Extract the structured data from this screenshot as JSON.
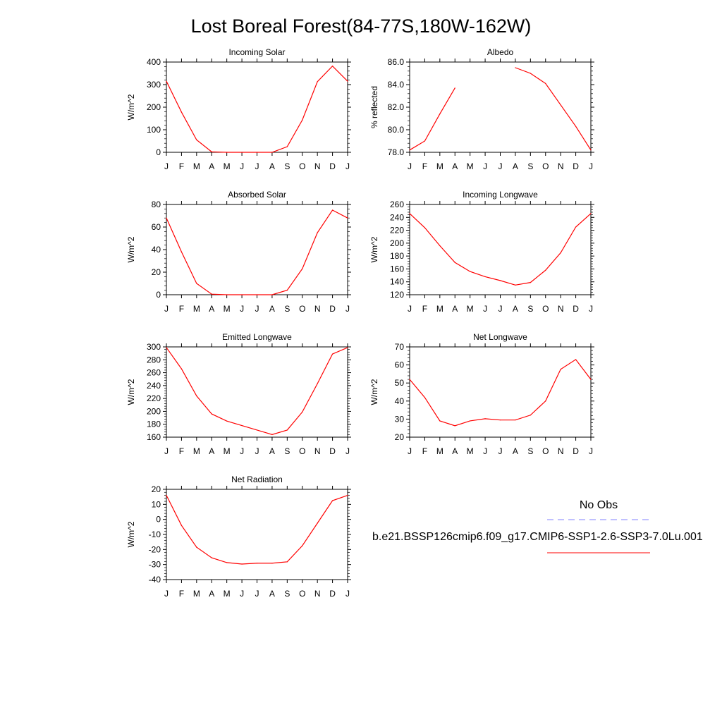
{
  "page": {
    "title": "Lost Boreal Forest(84-77S,180W-162W)"
  },
  "legend": {
    "obs_label": "No Obs",
    "model_label": "b.e21.BSSP126cmip6.f09_g17.CMIP6-SSP1-2.6-SSP3-7.0Lu.001",
    "obs_color": "#8080ff",
    "model_color": "#ff0000"
  },
  "colors": {
    "line": "#ff0000",
    "axis": "#000000"
  },
  "chart_data": [
    {
      "id": "incoming-solar",
      "type": "line",
      "title": "Incoming Solar",
      "ylabel": "W/m^2",
      "categories": [
        "J",
        "F",
        "M",
        "A",
        "M",
        "J",
        "J",
        "A",
        "S",
        "O",
        "N",
        "D",
        "J"
      ],
      "ylim": [
        0,
        400
      ],
      "yticks": [
        0,
        100,
        200,
        300,
        400
      ],
      "ytick_labels": [
        "0",
        "100",
        "200",
        "300",
        "400"
      ],
      "series": [
        {
          "values": [
            315,
            178,
            55,
            2,
            0,
            0,
            0,
            0,
            25,
            143,
            313,
            382,
            315
          ]
        }
      ]
    },
    {
      "id": "albedo",
      "type": "line",
      "title": "Albedo",
      "ylabel": "% reflected",
      "categories": [
        "J",
        "F",
        "M",
        "A",
        "M",
        "J",
        "J",
        "A",
        "S",
        "O",
        "N",
        "D",
        "J"
      ],
      "ylim": [
        78.0,
        86.0
      ],
      "yticks": [
        78.0,
        80.0,
        82.0,
        84.0,
        86.0
      ],
      "ytick_labels": [
        "78.0",
        "80.0",
        "82.0",
        "84.0",
        "86.0"
      ],
      "series": [
        {
          "values": [
            78.2,
            79.0,
            81.4,
            83.7,
            null,
            null,
            null,
            85.5,
            85.0,
            84.1,
            82.2,
            80.3,
            78.2
          ]
        }
      ]
    },
    {
      "id": "absorbed-solar",
      "type": "line",
      "title": "Absorbed Solar",
      "ylabel": "W/m^2",
      "categories": [
        "J",
        "F",
        "M",
        "A",
        "M",
        "J",
        "J",
        "A",
        "S",
        "O",
        "N",
        "D",
        "J"
      ],
      "ylim": [
        0,
        80
      ],
      "yticks": [
        0,
        20,
        40,
        60,
        80
      ],
      "ytick_labels": [
        "0",
        "20",
        "40",
        "60",
        "80"
      ],
      "series": [
        {
          "values": [
            68,
            38,
            10,
            0.5,
            0,
            0,
            0,
            0,
            4,
            23,
            55,
            75,
            68
          ]
        }
      ]
    },
    {
      "id": "incoming-longwave",
      "type": "line",
      "title": "Incoming Longwave",
      "ylabel": "W/m^2",
      "categories": [
        "J",
        "F",
        "M",
        "A",
        "M",
        "J",
        "J",
        "A",
        "S",
        "O",
        "N",
        "D",
        "J"
      ],
      "ylim": [
        120,
        260
      ],
      "yticks": [
        120,
        140,
        160,
        180,
        200,
        220,
        240,
        260
      ],
      "ytick_labels": [
        "120",
        "140",
        "160",
        "180",
        "200",
        "220",
        "240",
        "260"
      ],
      "series": [
        {
          "values": [
            246,
            224,
            196,
            170,
            156,
            148,
            142,
            135,
            139,
            158,
            185,
            225,
            246
          ]
        }
      ]
    },
    {
      "id": "emitted-longwave",
      "type": "line",
      "title": "Emitted Longwave",
      "ylabel": "W/m^2",
      "categories": [
        "J",
        "F",
        "M",
        "A",
        "M",
        "J",
        "J",
        "A",
        "S",
        "O",
        "N",
        "D",
        "J"
      ],
      "ylim": [
        160,
        300
      ],
      "yticks": [
        160,
        180,
        200,
        220,
        240,
        260,
        280,
        300
      ],
      "ytick_labels": [
        "160",
        "180",
        "200",
        "220",
        "240",
        "260",
        "280",
        "300"
      ],
      "series": [
        {
          "values": [
            299,
            266,
            224,
            196,
            185,
            178,
            171,
            164,
            171,
            199,
            243,
            289,
            299
          ]
        }
      ]
    },
    {
      "id": "net-longwave",
      "type": "line",
      "title": "Net Longwave",
      "ylabel": "W/m^2",
      "categories": [
        "J",
        "F",
        "M",
        "A",
        "M",
        "J",
        "J",
        "A",
        "S",
        "O",
        "N",
        "D",
        "J"
      ],
      "ylim": [
        20,
        70
      ],
      "yticks": [
        20,
        30,
        40,
        50,
        60,
        70
      ],
      "ytick_labels": [
        "20",
        "30",
        "40",
        "50",
        "60",
        "70"
      ],
      "series": [
        {
          "values": [
            52,
            42,
            29,
            26.3,
            29,
            30.2,
            29.5,
            29.5,
            32.2,
            40,
            57.6,
            63,
            52
          ]
        }
      ]
    },
    {
      "id": "net-radiation",
      "type": "line",
      "title": "Net Radiation",
      "ylabel": "W/m^2",
      "categories": [
        "J",
        "F",
        "M",
        "A",
        "M",
        "J",
        "J",
        "A",
        "S",
        "O",
        "N",
        "D",
        "J"
      ],
      "ylim": [
        -40,
        20
      ],
      "yticks": [
        -40,
        -30,
        -20,
        -10,
        0,
        10,
        20
      ],
      "ytick_labels": [
        "-40",
        "-30",
        "-20",
        "-10",
        "0",
        "10",
        "20"
      ],
      "series": [
        {
          "values": [
            16,
            -4,
            -18.5,
            -25.5,
            -28.7,
            -29.7,
            -29.1,
            -29.1,
            -28.2,
            -17.5,
            -2.5,
            12.5,
            16
          ]
        }
      ]
    }
  ]
}
